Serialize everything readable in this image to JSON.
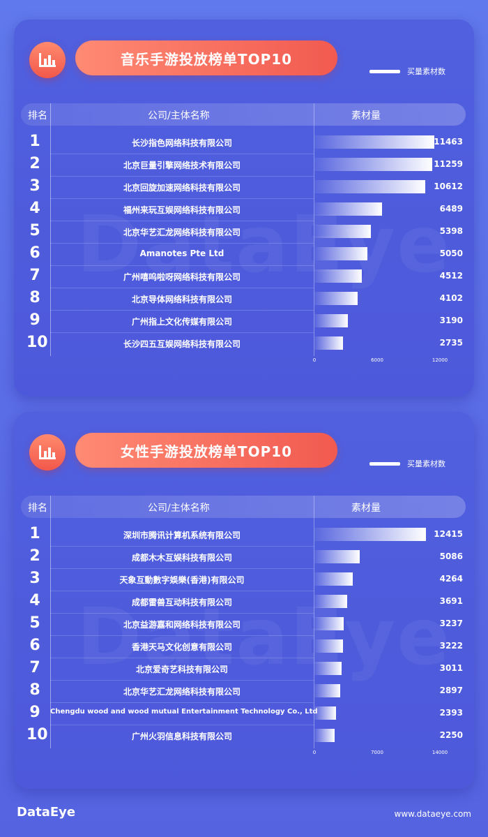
{
  "chart_data": [
    {
      "type": "bar",
      "title": "音乐手游投放榜单TOP10",
      "legend": "买量素材数",
      "headers": {
        "rank": "排名",
        "company": "公司/主体名称",
        "amount": "素材量"
      },
      "categories": [
        "长沙指色网络科技有限公司",
        "北京巨量引擎网络技术有限公司",
        "北京回旋加速网络科技有限公司",
        "福州来玩互娱网络科技有限公司",
        "北京华艺汇龙网络科技有限公司",
        "Amanotes Pte Ltd",
        "广州嘻呜啦呀网络科技有限公司",
        "北京导体网络科技有限公司",
        "广州指上文化传媒有限公司",
        "长沙四五互娱网络科技有限公司"
      ],
      "ranks": [
        "1",
        "2",
        "3",
        "4",
        "5",
        "6",
        "7",
        "8",
        "9",
        "10"
      ],
      "values": [
        11463,
        11259,
        10612,
        6489,
        5398,
        5050,
        4512,
        4102,
        3190,
        2735
      ],
      "value_labels": [
        "11463",
        "11259",
        "10612",
        "6489",
        "5398",
        "5050",
        "4512",
        "4102",
        "3190",
        "2735"
      ],
      "xlim": [
        0,
        12000
      ],
      "x_ticks": [
        "0",
        "6000",
        "12000"
      ]
    },
    {
      "type": "bar",
      "title": "女性手游投放榜单TOP10",
      "legend": "买量素材数",
      "headers": {
        "rank": "排名",
        "company": "公司/主体名称",
        "amount": "素材量"
      },
      "categories": [
        "深圳市腾讯计算机系统有限公司",
        "成都木木互娱科技有限公司",
        "天象互動數字娛樂(香港)有限公司",
        "成都雷兽互动科技有限公司",
        "北京益游嘉和网络科技有限公司",
        "香港天马文化创意有限公司",
        "北京爱奇艺科技有限公司",
        "北京华艺汇龙网络科技有限公司",
        "Chengdu wood and wood mutual Entertainment Technology Co., Ltd",
        "广州火羽信息科技有限公司"
      ],
      "ranks": [
        "1",
        "2",
        "3",
        "4",
        "5",
        "6",
        "7",
        "8",
        "9",
        "10"
      ],
      "values": [
        12415,
        5086,
        4264,
        3691,
        3237,
        3222,
        3011,
        2897,
        2393,
        2250
      ],
      "value_labels": [
        "12415",
        "5086",
        "4264",
        "3691",
        "3237",
        "3222",
        "3011",
        "2897",
        "2393",
        "2250"
      ],
      "xlim": [
        0,
        14000
      ],
      "x_ticks": [
        "0",
        "7000",
        "14000"
      ]
    }
  ],
  "watermark": "DataEye",
  "footer": {
    "logo": "DataEye",
    "url": "www.dataeye.com"
  },
  "icons": {
    "badge": "bar-chart-icon"
  },
  "colors": {
    "accent": "#f2584a",
    "background": "#5a6ce6"
  }
}
